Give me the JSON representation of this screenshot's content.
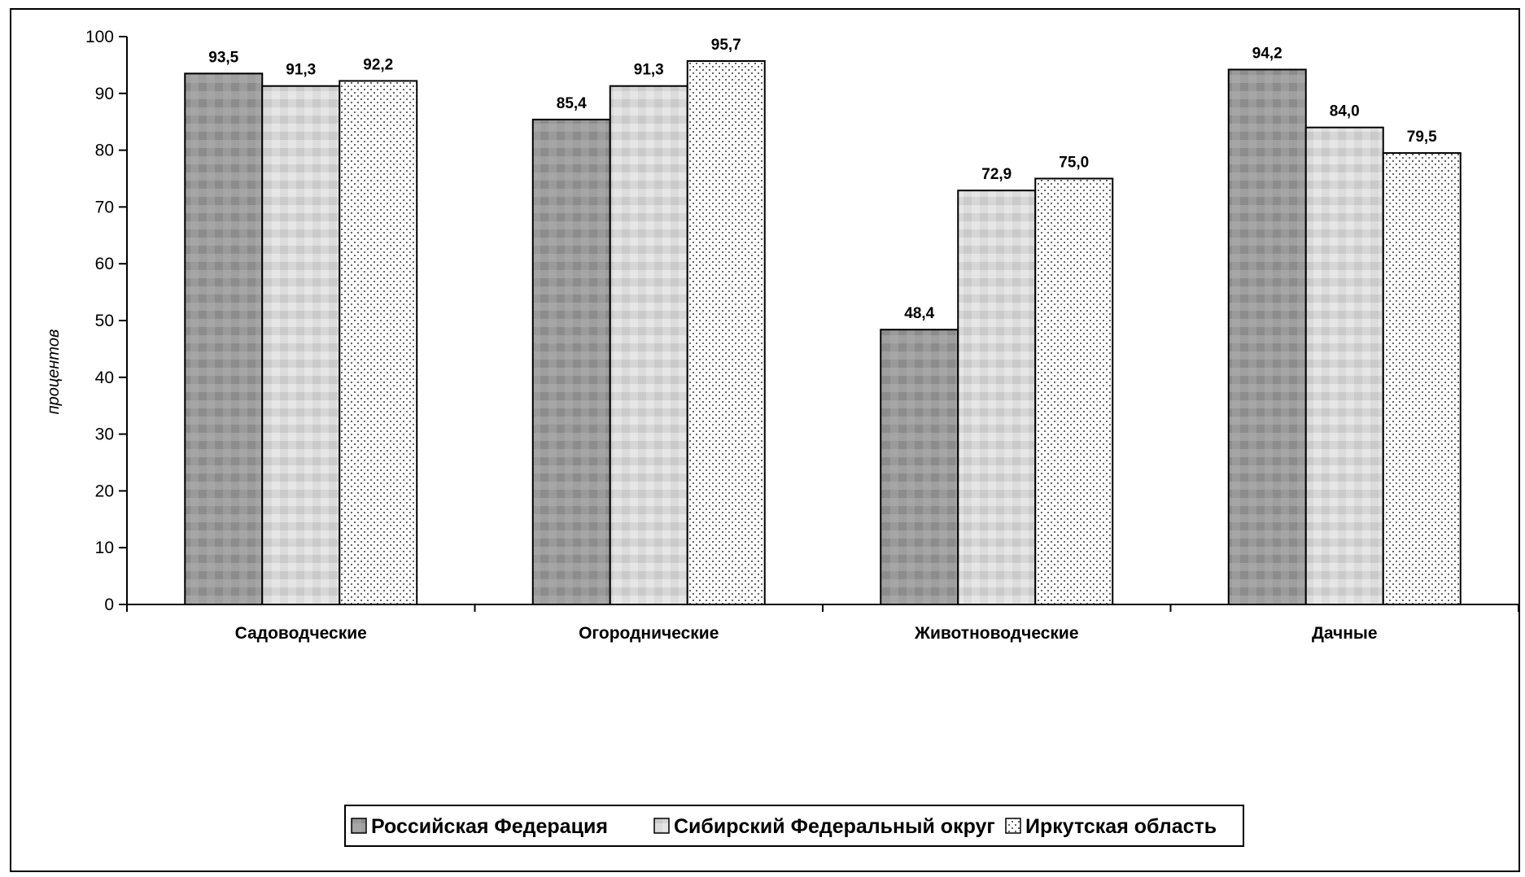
{
  "chart_data": {
    "type": "bar",
    "categories": [
      "Садоводческие",
      "Огороднические",
      "Животноводческие",
      "Дачные"
    ],
    "series": [
      {
        "name": "Российская Федерация",
        "values": [
          93.5,
          85.4,
          48.4,
          94.2
        ],
        "color": "#9a9a9a",
        "pattern": "dark-mosaic"
      },
      {
        "name": "Сибирский Федеральный округ",
        "values": [
          91.3,
          91.3,
          72.9,
          84.0
        ],
        "color": "#d9d9d9",
        "pattern": "light-mosaic"
      },
      {
        "name": "Иркутская область",
        "values": [
          92.2,
          95.7,
          75.0,
          79.5
        ],
        "color": "#ffffff",
        "pattern": "dotted"
      }
    ],
    "data_labels": [
      [
        "93,5",
        "85,4",
        "48,4",
        "94,2"
      ],
      [
        "91,3",
        "91,3",
        "72,9",
        "84,0"
      ],
      [
        "92,2",
        "95,7",
        "75,0",
        "79,5"
      ]
    ],
    "title": "",
    "xlabel": "",
    "ylabel": "процентов",
    "ylim": [
      0,
      100
    ],
    "yticks": [
      0,
      10,
      20,
      30,
      40,
      50,
      60,
      70,
      80,
      90,
      100
    ],
    "grid": false,
    "legend_position": "bottom"
  }
}
